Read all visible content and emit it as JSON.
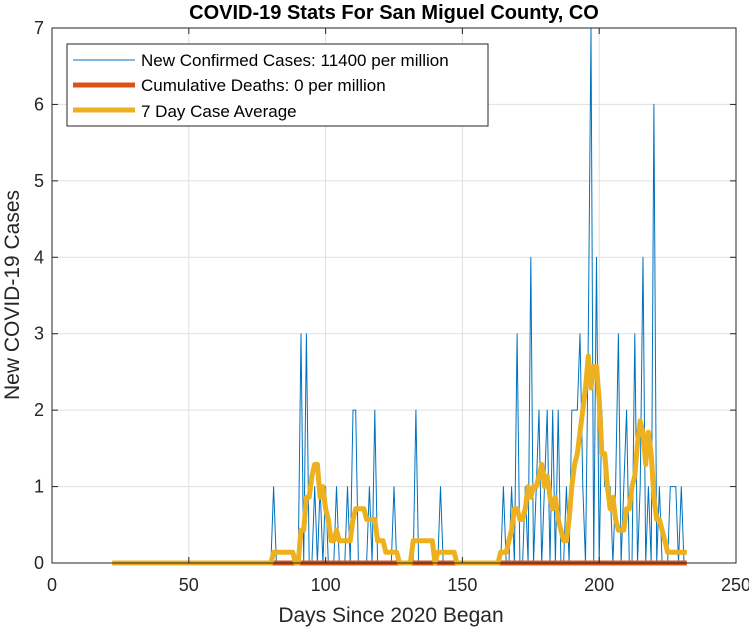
{
  "chart_data": {
    "type": "line",
    "title": "COVID-19 Stats For San Miguel County, CO",
    "xlabel": "Days Since 2020 Began",
    "ylabel": "New COVID-19 Cases",
    "xlim": [
      0,
      250
    ],
    "ylim": [
      0,
      7
    ],
    "xticks": [
      0,
      50,
      100,
      150,
      200,
      250
    ],
    "yticks": [
      0,
      1,
      2,
      3,
      4,
      5,
      6,
      7
    ],
    "grid": true,
    "legend_position": "top-left",
    "legend": [
      "New Confirmed Cases: 11400 per million",
      "Cumulative Deaths: 0 per million",
      "7 Day Case Average"
    ],
    "colors": {
      "new_cases": "#0072BD",
      "deaths": "#D95319",
      "average": "#EDB120",
      "grid": "#DFDFDF",
      "axis": "#262626"
    },
    "series": [
      {
        "name": "New Confirmed Cases: 11400 per million",
        "line_width": 1,
        "points": [
          [
            22,
            0
          ],
          [
            80,
            0
          ],
          [
            81,
            1
          ],
          [
            82,
            0
          ],
          [
            89,
            0
          ],
          [
            90,
            0
          ],
          [
            91,
            3
          ],
          [
            92,
            0
          ],
          [
            93,
            3
          ],
          [
            94,
            0
          ],
          [
            95,
            0
          ],
          [
            96,
            1
          ],
          [
            97,
            0
          ],
          [
            98,
            1
          ],
          [
            99,
            0
          ],
          [
            100,
            1
          ],
          [
            101,
            0
          ],
          [
            102,
            0
          ],
          [
            103,
            0
          ],
          [
            104,
            1
          ],
          [
            105,
            0
          ],
          [
            106,
            0
          ],
          [
            107,
            0
          ],
          [
            108,
            1
          ],
          [
            109,
            0
          ],
          [
            110,
            2
          ],
          [
            111,
            2
          ],
          [
            112,
            0
          ],
          [
            113,
            0
          ],
          [
            114,
            0
          ],
          [
            115,
            0
          ],
          [
            116,
            1
          ],
          [
            117,
            0
          ],
          [
            118,
            2
          ],
          [
            119,
            0
          ],
          [
            120,
            0
          ],
          [
            121,
            0
          ],
          [
            122,
            0
          ],
          [
            123,
            0
          ],
          [
            124,
            0
          ],
          [
            125,
            1
          ],
          [
            126,
            0
          ],
          [
            127,
            0
          ],
          [
            128,
            0
          ],
          [
            129,
            0
          ],
          [
            130,
            0
          ],
          [
            131,
            0
          ],
          [
            132,
            0
          ],
          [
            133,
            2
          ],
          [
            134,
            0
          ],
          [
            135,
            0
          ],
          [
            136,
            0
          ],
          [
            137,
            0
          ],
          [
            138,
            0
          ],
          [
            139,
            0
          ],
          [
            140,
            0
          ],
          [
            141,
            0
          ],
          [
            142,
            1
          ],
          [
            143,
            0
          ],
          [
            150,
            0
          ],
          [
            163,
            0
          ],
          [
            164,
            0
          ],
          [
            165,
            1
          ],
          [
            166,
            0
          ],
          [
            167,
            0
          ],
          [
            168,
            1
          ],
          [
            169,
            0
          ],
          [
            170,
            3
          ],
          [
            171,
            0
          ],
          [
            172,
            0
          ],
          [
            173,
            1
          ],
          [
            174,
            0
          ],
          [
            175,
            4
          ],
          [
            176,
            0
          ],
          [
            177,
            1
          ],
          [
            178,
            2
          ],
          [
            179,
            0
          ],
          [
            180,
            1
          ],
          [
            181,
            2
          ],
          [
            182,
            0
          ],
          [
            183,
            2
          ],
          [
            184,
            0
          ],
          [
            185,
            2
          ],
          [
            186,
            0
          ],
          [
            187,
            0
          ],
          [
            188,
            1
          ],
          [
            189,
            0
          ],
          [
            190,
            2
          ],
          [
            191,
            2
          ],
          [
            192,
            2
          ],
          [
            193,
            3
          ],
          [
            194,
            1
          ],
          [
            195,
            0
          ],
          [
            196,
            3
          ],
          [
            197,
            7
          ],
          [
            198,
            0
          ],
          [
            199,
            4
          ],
          [
            200,
            0
          ],
          [
            201,
            2
          ],
          [
            202,
            1
          ],
          [
            203,
            1
          ],
          [
            204,
            1
          ],
          [
            205,
            0
          ],
          [
            206,
            1
          ],
          [
            207,
            3
          ],
          [
            208,
            0
          ],
          [
            209,
            1
          ],
          [
            210,
            2
          ],
          [
            211,
            0
          ],
          [
            212,
            0
          ],
          [
            213,
            3
          ],
          [
            214,
            0
          ],
          [
            215,
            1
          ],
          [
            216,
            4
          ],
          [
            217,
            0
          ],
          [
            218,
            1
          ],
          [
            219,
            0
          ],
          [
            220,
            6
          ],
          [
            221,
            0
          ],
          [
            222,
            1
          ],
          [
            223,
            0
          ],
          [
            224,
            0
          ],
          [
            225,
            0
          ],
          [
            226,
            1
          ],
          [
            227,
            1
          ],
          [
            228,
            1
          ],
          [
            229,
            0
          ],
          [
            230,
            1
          ],
          [
            231,
            0
          ],
          [
            232,
            0
          ]
        ]
      },
      {
        "name": "Cumulative Deaths: 0 per million",
        "line_width": 5,
        "points": [
          [
            80,
            0
          ],
          [
            232,
            0
          ]
        ]
      },
      {
        "name": "7 Day Case Average",
        "line_width": 5,
        "points": [
          [
            22,
            0
          ],
          [
            80,
            0
          ],
          [
            81,
            0.14
          ],
          [
            82,
            0.14
          ],
          [
            87,
            0.14
          ],
          [
            88,
            0.14
          ],
          [
            89,
            0
          ],
          [
            90,
            0
          ],
          [
            91,
            0.43
          ],
          [
            92,
            0.43
          ],
          [
            93,
            0.86
          ],
          [
            94,
            0.86
          ],
          [
            95,
            1.14
          ],
          [
            96,
            1.29
          ],
          [
            97,
            1.29
          ],
          [
            98,
            0.86
          ],
          [
            99,
            1.0
          ],
          [
            100,
            0.71
          ],
          [
            101,
            0.57
          ],
          [
            102,
            0.29
          ],
          [
            103,
            0.29
          ],
          [
            104,
            0.43
          ],
          [
            105,
            0.29
          ],
          [
            106,
            0.29
          ],
          [
            107,
            0.29
          ],
          [
            108,
            0.29
          ],
          [
            109,
            0.29
          ],
          [
            110,
            0.57
          ],
          [
            111,
            0.71
          ],
          [
            112,
            0.71
          ],
          [
            113,
            0.71
          ],
          [
            114,
            0.71
          ],
          [
            115,
            0.57
          ],
          [
            116,
            0.57
          ],
          [
            117,
            0.57
          ],
          [
            118,
            0.57
          ],
          [
            119,
            0.29
          ],
          [
            120,
            0.29
          ],
          [
            121,
            0.29
          ],
          [
            122,
            0.14
          ],
          [
            125,
            0.14
          ],
          [
            126,
            0.14
          ],
          [
            127,
            0
          ],
          [
            129,
            0
          ],
          [
            130,
            0
          ],
          [
            131,
            0
          ],
          [
            132,
            0.29
          ],
          [
            133,
            0.29
          ],
          [
            134,
            0.29
          ],
          [
            135,
            0.29
          ],
          [
            136,
            0.29
          ],
          [
            137,
            0.29
          ],
          [
            138,
            0.29
          ],
          [
            139,
            0.29
          ],
          [
            140,
            0
          ],
          [
            141,
            0.14
          ],
          [
            142,
            0.14
          ],
          [
            147,
            0.14
          ],
          [
            148,
            0
          ],
          [
            163,
            0
          ],
          [
            164,
            0.14
          ],
          [
            165,
            0.14
          ],
          [
            166,
            0.14
          ],
          [
            167,
            0.29
          ],
          [
            168,
            0.43
          ],
          [
            169,
            0.71
          ],
          [
            170,
            0.71
          ],
          [
            171,
            0.57
          ],
          [
            172,
            0.57
          ],
          [
            173,
            0.71
          ],
          [
            174,
            1.0
          ],
          [
            175,
            0.86
          ],
          [
            176,
            1.0
          ],
          [
            177,
            1.0
          ],
          [
            178,
            1.14
          ],
          [
            179,
            1.29
          ],
          [
            180,
            1.0
          ],
          [
            181,
            1.14
          ],
          [
            182,
            0.86
          ],
          [
            183,
            0.71
          ],
          [
            184,
            0.86
          ],
          [
            185,
            0.57
          ],
          [
            186,
            0.43
          ],
          [
            187,
            0.29
          ],
          [
            188,
            0.29
          ],
          [
            189,
            0.57
          ],
          [
            190,
            1.0
          ],
          [
            191,
            1.29
          ],
          [
            192,
            1.43
          ],
          [
            193,
            1.71
          ],
          [
            194,
            2.0
          ],
          [
            195,
            2.29
          ],
          [
            196,
            2.71
          ],
          [
            197,
            2.29
          ],
          [
            198,
            2.57
          ],
          [
            199,
            2.57
          ],
          [
            200,
            2.14
          ],
          [
            201,
            1.43
          ],
          [
            202,
            1.43
          ],
          [
            203,
            1.0
          ],
          [
            204,
            0.71
          ],
          [
            205,
            0.86
          ],
          [
            206,
            0.57
          ],
          [
            207,
            0.43
          ],
          [
            208,
            0.43
          ],
          [
            209,
            0.43
          ],
          [
            210,
            0.71
          ],
          [
            211,
            0.71
          ],
          [
            212,
            1.0
          ],
          [
            213,
            1.14
          ],
          [
            214,
            1.57
          ],
          [
            215,
            1.86
          ],
          [
            216,
            1.71
          ],
          [
            217,
            1.29
          ],
          [
            218,
            1.71
          ],
          [
            219,
            1.43
          ],
          [
            220,
            0.86
          ],
          [
            221,
            0.57
          ],
          [
            222,
            0.57
          ],
          [
            223,
            0.43
          ],
          [
            224,
            0.29
          ],
          [
            225,
            0.14
          ],
          [
            226,
            0.14
          ],
          [
            232,
            0.14
          ]
        ]
      }
    ]
  }
}
